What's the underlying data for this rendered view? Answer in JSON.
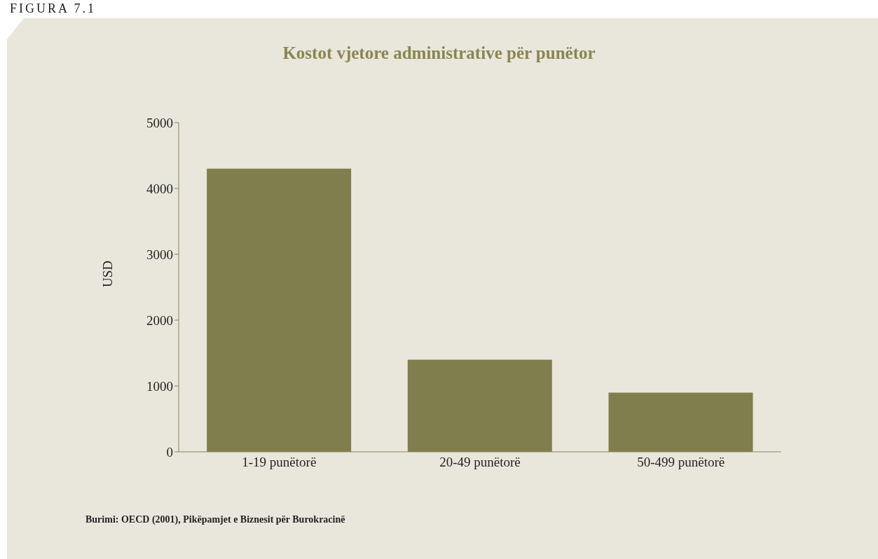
{
  "chart_data": {
    "type": "bar",
    "title": "Kostot vjetore administrative për punëtor",
    "ylabel": "USD",
    "categories": [
      "1-19 punëtorë",
      "20-49 punëtorë",
      "50-499 punëtorë"
    ],
    "values": [
      4300,
      1400,
      900
    ],
    "color": "#817e4d",
    "ylim": [
      0,
      5000
    ],
    "yticks": [
      0,
      1000,
      2000,
      3000,
      4000,
      5000
    ],
    "grid": false,
    "annotations": [
      "FIGURA 7.1",
      "Burimi: OECD (2001), Pikëpamjet e Biznesit për Burokracinë"
    ]
  }
}
